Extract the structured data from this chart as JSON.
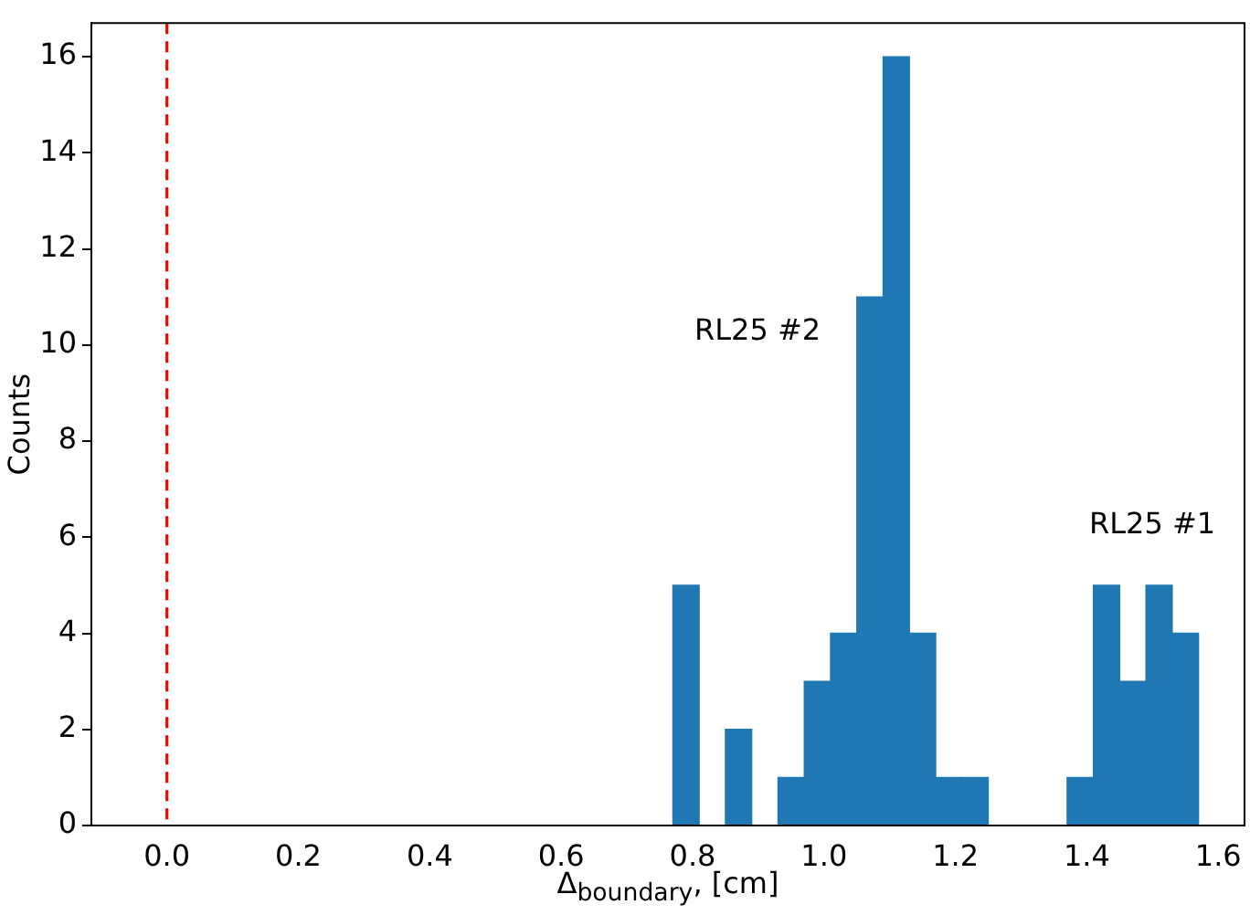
{
  "chart_data": {
    "type": "histogram",
    "xlabel": "Δ$_{boundary}$, [cm]",
    "ylabel": "Counts",
    "bins": [
      0.77,
      0.81,
      0.85,
      0.89,
      0.93,
      0.97,
      1.01,
      1.05,
      1.09,
      1.13,
      1.17,
      1.21,
      1.25,
      1.29,
      1.33,
      1.37,
      1.41,
      1.45,
      1.49,
      1.53,
      1.57
    ],
    "values": [
      5,
      0,
      2,
      0,
      1,
      3,
      4,
      11,
      16,
      4,
      1,
      1,
      0,
      0,
      0,
      1,
      5,
      3,
      5,
      4
    ],
    "color": "#1f77b4",
    "xlim": [
      -0.115,
      1.64
    ],
    "xticks": [
      {
        "value": 0,
        "label": "0.0"
      },
      0.2,
      0.4,
      0.6,
      0.8,
      {
        "value": 1,
        "label": "1.0"
      },
      1.2,
      1.4,
      1.6
    ],
    "ylim": [
      0,
      16.7
    ],
    "yticks": [
      0,
      2,
      4,
      6,
      8,
      10,
      12,
      14,
      16
    ],
    "ref_lines": [
      {
        "axis": "x",
        "value": 0,
        "color": "#ff0000",
        "line_style": "dashed"
      }
    ],
    "annotations": [
      "RL25 #2",
      "RL25 #1"
    ]
  }
}
